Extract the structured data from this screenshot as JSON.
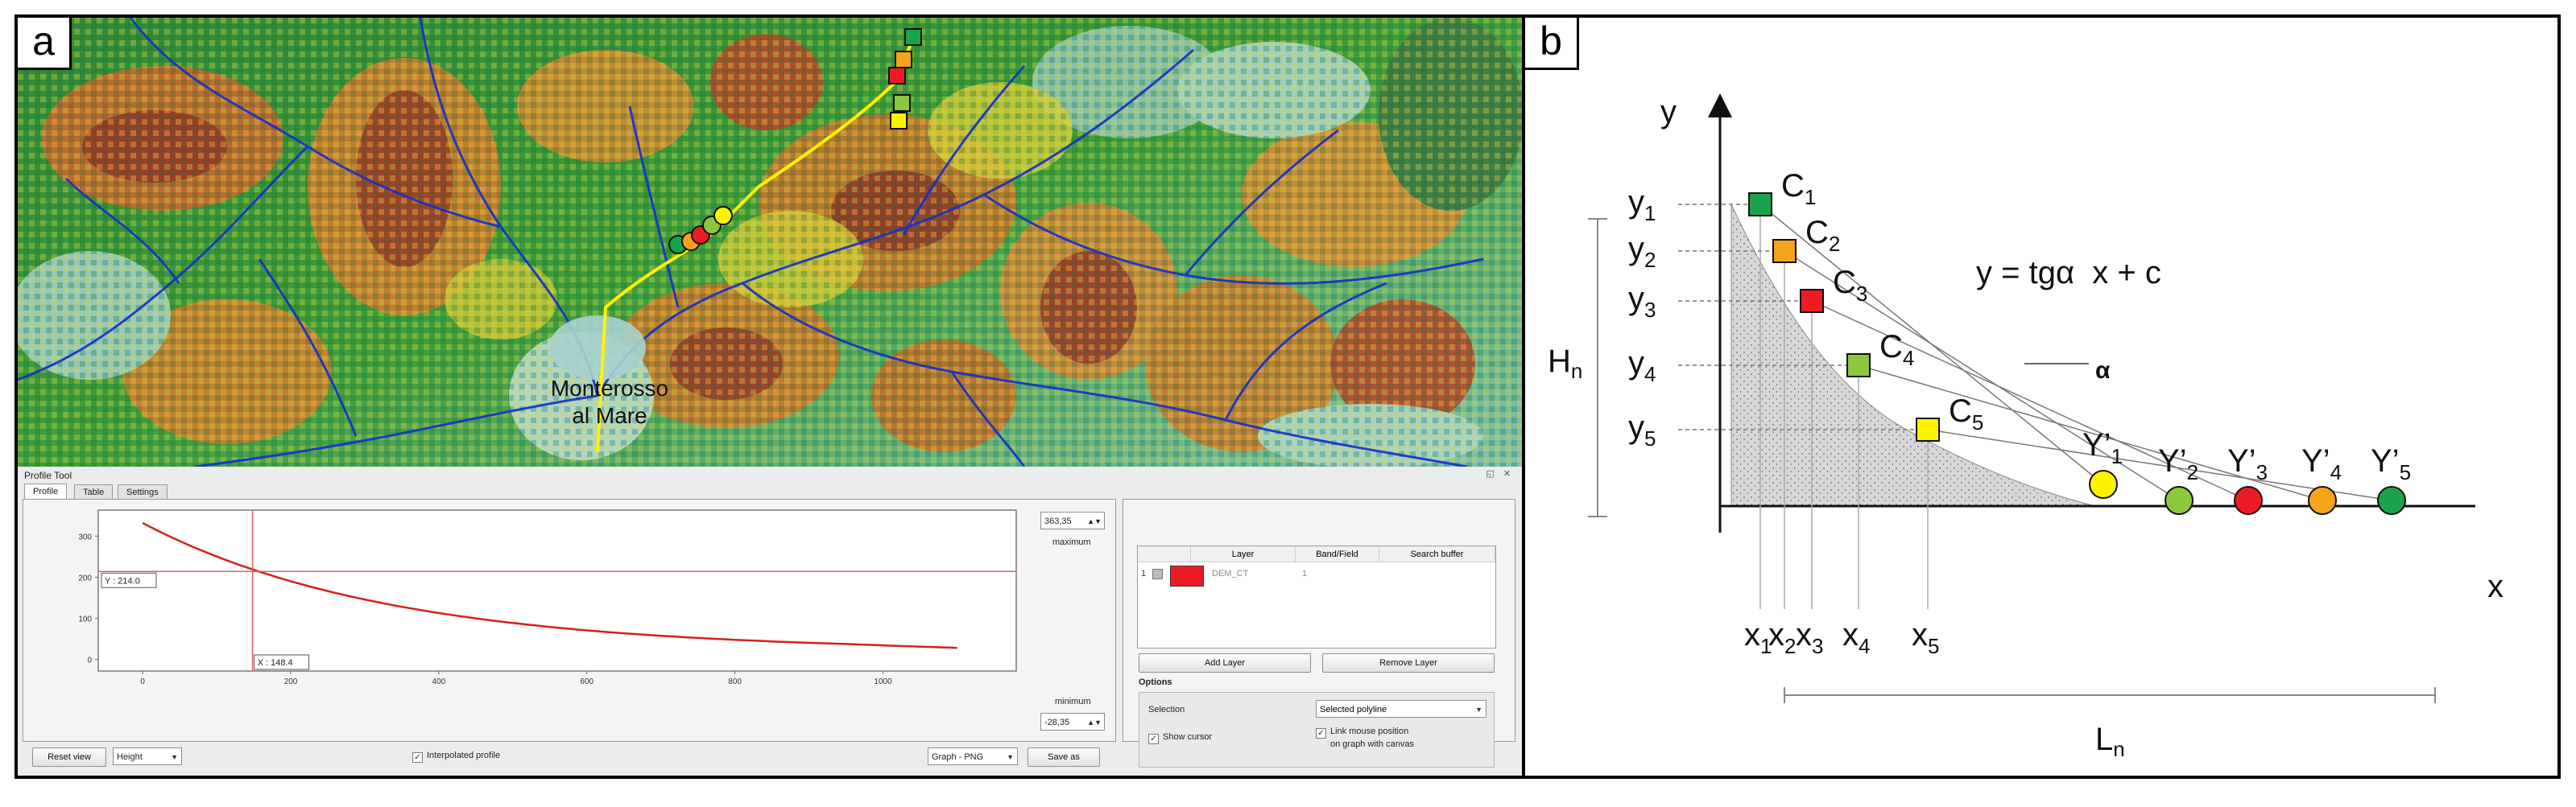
{
  "panel_a": {
    "label": "a",
    "map": {
      "town_label_line1": "Monterosso",
      "town_label_line2": "al Mare",
      "marker_colors": [
        "#1aa34a",
        "#f5a31a",
        "#ec1c24",
        "#8dc63f",
        "#fff200"
      ]
    },
    "profile_tool": {
      "title": "Profile Tool",
      "tabs": [
        "Profile",
        "Table",
        "Settings"
      ],
      "graph": {
        "y_max_value": "363,35",
        "y_max_caption": "maximum",
        "y_min_value": "-28,35",
        "y_min_caption": "minimum",
        "y_ticks": [
          "300",
          "200",
          "100",
          "0"
        ],
        "x_ticks": [
          "0",
          "200",
          "400",
          "600",
          "800",
          "1000"
        ],
        "cursor_y_label": "Y : 214.0",
        "cursor_x_label": "X : 148.4",
        "line_color": "#d42020"
      },
      "buttons": {
        "reset_view": "Reset view",
        "height": "Height",
        "interpolated_profile": "Interpolated profile",
        "graph_format": "Graph - PNG",
        "save_as": "Save as"
      },
      "layers": {
        "columns": [
          "Layer",
          "Band/Field",
          "Search buffer"
        ],
        "rows": [
          {
            "index": "1",
            "layer": "DEM_CT",
            "band": "1",
            "color": "#ec1c24"
          }
        ],
        "add_layer": "Add Layer",
        "remove_layer": "Remove Layer"
      },
      "options": {
        "title": "Options",
        "selection_label": "Selection",
        "selection_value": "Selected polyline",
        "show_cursor": "Show cursor",
        "link_mouse_line1": "Link mouse position",
        "link_mouse_line2": "on graph with canvas"
      }
    }
  },
  "panel_b": {
    "label": "b",
    "axis_x": "x",
    "axis_y": "y",
    "equation": "y = tgα  x + c",
    "alpha": "α",
    "hn": {
      "base": "H",
      "sub": "n"
    },
    "ln": {
      "base": "L",
      "sub": "n"
    },
    "points": [
      {
        "c_base": "C",
        "c_sub": "1",
        "y_base": "y",
        "y_sub": "1",
        "x_base": "x",
        "x_sub": "1",
        "yp_base": "Y’",
        "yp_sub": "1",
        "color": "#1aa34a"
      },
      {
        "c_base": "C",
        "c_sub": "2",
        "y_base": "y",
        "y_sub": "2",
        "x_base": "x",
        "x_sub": "2",
        "yp_base": "Y’",
        "yp_sub": "2",
        "color": "#f5a31a"
      },
      {
        "c_base": "C",
        "c_sub": "3",
        "y_base": "y",
        "y_sub": "3",
        "x_base": "x",
        "x_sub": "3",
        "yp_base": "Y’",
        "yp_sub": "3",
        "color": "#ec1c24"
      },
      {
        "c_base": "C",
        "c_sub": "4",
        "y_base": "y",
        "y_sub": "4",
        "x_base": "x",
        "x_sub": "4",
        "yp_base": "Y’",
        "yp_sub": "4",
        "color": "#8dc63f"
      },
      {
        "c_base": "C",
        "c_sub": "5",
        "y_base": "y",
        "y_sub": "5",
        "x_base": "x",
        "x_sub": "5",
        "yp_base": "Y’",
        "yp_sub": "5",
        "color": "#fff200"
      }
    ],
    "circle_order_colors": [
      "#fff200",
      "#8dc63f",
      "#ec1c24",
      "#f5a31a",
      "#1aa34a"
    ]
  }
}
